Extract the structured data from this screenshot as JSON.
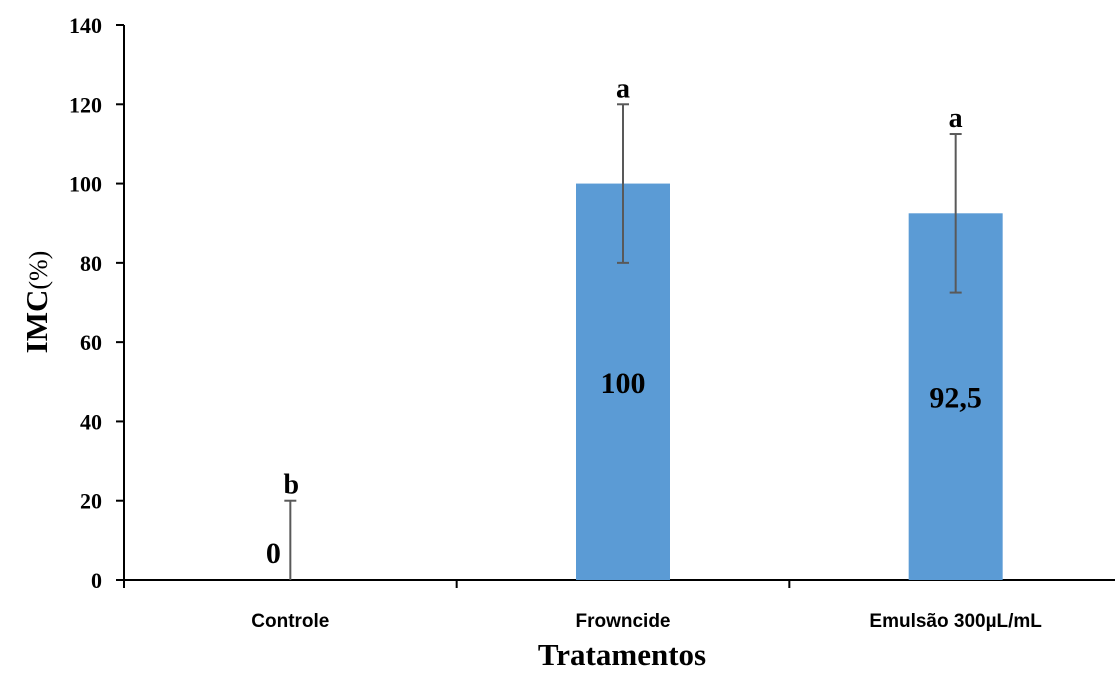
{
  "chart_data": {
    "type": "bar",
    "categories": [
      "Controle",
      "Frowncide",
      "Emulsão 300µL/mL"
    ],
    "values": [
      0,
      100,
      92.5
    ],
    "value_labels": [
      "0",
      "100",
      "92,5"
    ],
    "error": [
      20,
      20,
      20
    ],
    "significance_letters": [
      "b",
      "a",
      "a"
    ],
    "xlabel": "Tratamentos",
    "ylabel": "IMC",
    "ylabel_unit": "(%)",
    "ylim": [
      0,
      140
    ],
    "yticks": [
      0,
      20,
      40,
      60,
      80,
      100,
      120,
      140
    ],
    "ytick_labels": [
      "0",
      "20",
      "40",
      "60",
      "80",
      "100",
      "120",
      "140"
    ],
    "bar_color": "#5b9bd5",
    "errorbar_color": "#595959",
    "axis_color": "#000000",
    "grid": false
  }
}
